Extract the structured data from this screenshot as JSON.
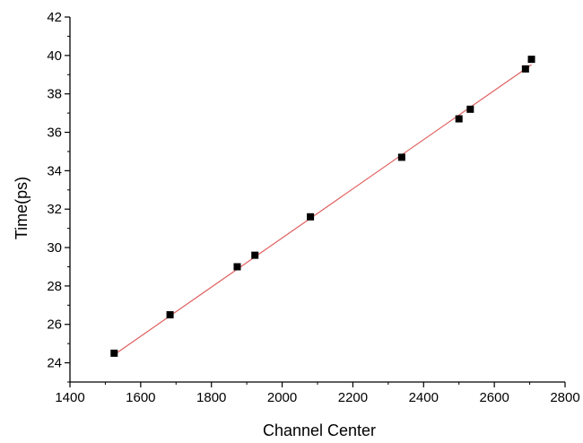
{
  "chart_data": {
    "type": "scatter",
    "title": "",
    "xlabel": "Channel Center",
    "ylabel": "Time(ps)",
    "xlim": [
      1400,
      2800
    ],
    "ylim": [
      23,
      42
    ],
    "x_ticks": [
      1400,
      1600,
      1800,
      2000,
      2200,
      2400,
      2600,
      2800
    ],
    "x_tick_labels": [
      "1400",
      "1600",
      "1800",
      "2000",
      "2200",
      "2400",
      "2600",
      "2800"
    ],
    "y_ticks": [
      24,
      26,
      28,
      30,
      32,
      34,
      36,
      38,
      40,
      42
    ],
    "y_tick_labels": [
      "24",
      "26",
      "28",
      "30",
      "32",
      "34",
      "36",
      "38",
      "40",
      "42"
    ],
    "grid": false,
    "series": [
      {
        "type": "scatter",
        "marker": "square",
        "color": "#000000",
        "points": [
          {
            "x": 1525,
            "y": 24.5
          },
          {
            "x": 1683,
            "y": 26.5
          },
          {
            "x": 1873,
            "y": 29.0
          },
          {
            "x": 1923,
            "y": 29.6
          },
          {
            "x": 2080,
            "y": 31.6
          },
          {
            "x": 2338,
            "y": 34.7
          },
          {
            "x": 2500,
            "y": 36.7
          },
          {
            "x": 2532,
            "y": 37.2
          },
          {
            "x": 2688,
            "y": 39.3
          },
          {
            "x": 2705,
            "y": 39.8
          }
        ]
      },
      {
        "type": "line",
        "fit": "linear",
        "color": "#e06060",
        "points": [
          {
            "x": 1525,
            "y": 24.42
          },
          {
            "x": 2705,
            "y": 39.52
          }
        ]
      }
    ]
  }
}
